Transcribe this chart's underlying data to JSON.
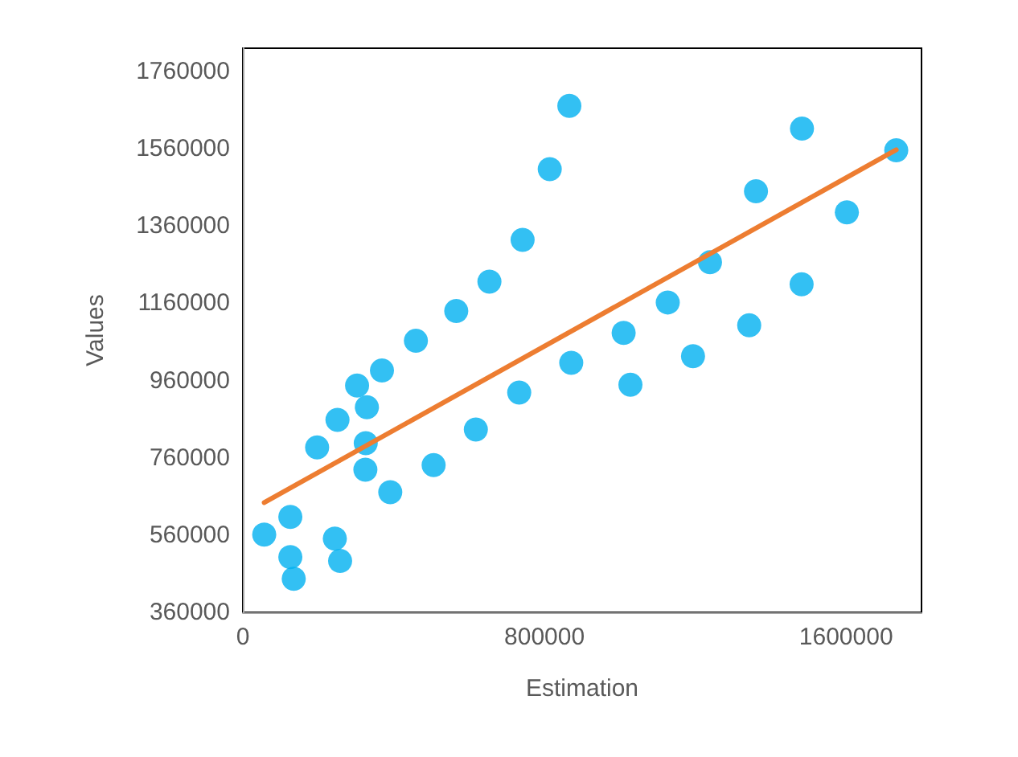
{
  "chart_data": {
    "type": "scatter",
    "xlabel": "Estimation",
    "ylabel": "Values",
    "xlim": [
      0,
      1800000
    ],
    "xticks": [
      0,
      800000,
      1600000
    ],
    "ylim": [
      360000,
      1820000
    ],
    "yticks": [
      360000,
      560000,
      760000,
      960000,
      1160000,
      1360000,
      1560000,
      1760000
    ],
    "grid": false,
    "marker": "circle",
    "series": [
      {
        "color": "#00b0f0",
        "x": [
          56700,
          126000,
          126000,
          135000,
          197000,
          244000,
          258000,
          251000,
          303000,
          329000,
          326000,
          325000,
          369000,
          391000,
          459000,
          506000,
          566000,
          618000,
          654000,
          733000,
          742000,
          814000,
          866000,
          871000,
          1010000,
          1028000,
          1127000,
          1194000,
          1239000,
          1343000,
          1361000,
          1483000,
          1482000,
          1602000,
          1733000
        ],
        "values": [
          561000,
          607000,
          503000,
          447000,
          787000,
          551000,
          493000,
          858000,
          947000,
          891000,
          798000,
          729000,
          986000,
          671000,
          1063000,
          741000,
          1140000,
          833000,
          1216000,
          929000,
          1324000,
          1507000,
          1671000,
          1006000,
          1083000,
          949000,
          1162000,
          1023000,
          1266000,
          1103000,
          1450000,
          1612000,
          1209000,
          1395000,
          1556000
        ]
      },
      {
        "type": "line",
        "color": "#ed7d31",
        "marker": "none",
        "line_style": "solid",
        "x": [
          56700,
          1733000
        ],
        "values": [
          644000,
          1557000
        ]
      }
    ]
  }
}
